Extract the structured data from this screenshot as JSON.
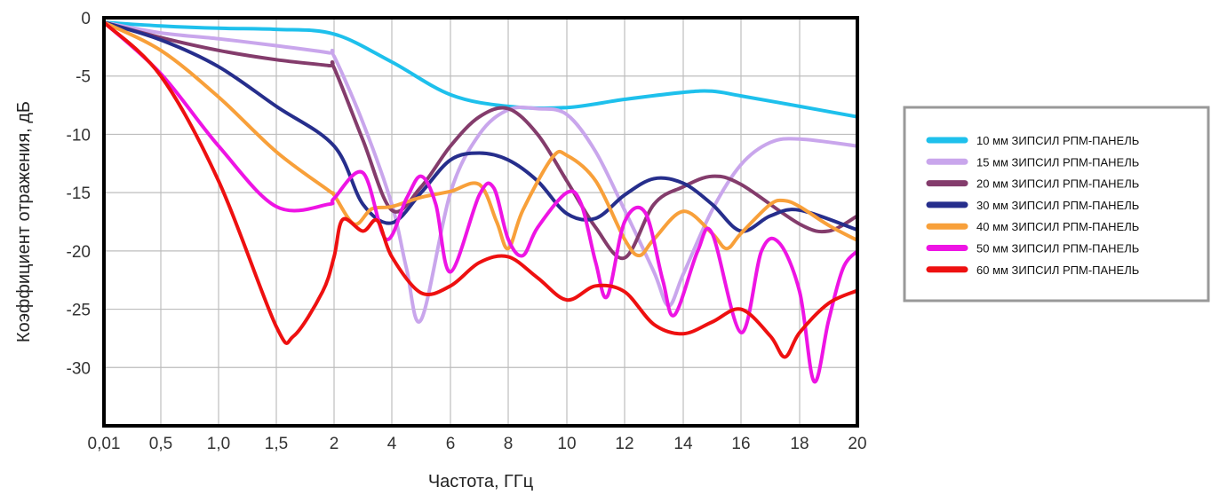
{
  "chart_data": {
    "type": "line",
    "title": "",
    "xlabel": "Частота, ГГц",
    "ylabel": "Коэффициент отражения, дБ",
    "x_ticks": [
      "0,01",
      "0,5",
      "1,0",
      "1,5",
      "2",
      "4",
      "6",
      "8",
      "10",
      "12",
      "14",
      "16",
      "18",
      "20"
    ],
    "y_ticks": [
      0,
      -5,
      -10,
      -15,
      -20,
      -25,
      -30
    ],
    "ylim": [
      -35,
      0
    ],
    "x_scale": "piecewise: 0,01–2 GHz stretched, 2–20 GHz compressed",
    "grid": true,
    "legend_position": "right",
    "series": [
      {
        "name": "10 мм ЗИПСИЛ РПМ-ПАНЕЛЬ",
        "color": "#1ec0ec",
        "points": [
          [
            0.01,
            -0.4
          ],
          [
            0.5,
            -0.7
          ],
          [
            1.0,
            -0.9
          ],
          [
            1.5,
            -1.0
          ],
          [
            2,
            -1.4
          ],
          [
            4,
            -3.8
          ],
          [
            6,
            -6.6
          ],
          [
            8,
            -7.6
          ],
          [
            10,
            -7.7
          ],
          [
            12,
            -7.0
          ],
          [
            14,
            -6.4
          ],
          [
            15,
            -6.3
          ],
          [
            16,
            -6.7
          ],
          [
            18,
            -7.6
          ],
          [
            20,
            -8.5
          ]
        ]
      },
      {
        "name": "15 мм ЗИПСИЛ РПМ-ПАНЕЛЬ",
        "color": "#c9a6ec",
        "points": [
          [
            0.01,
            -0.4
          ],
          [
            0.5,
            -1.3
          ],
          [
            1.0,
            -1.8
          ],
          [
            1.5,
            -2.4
          ],
          [
            1.95,
            -3.0
          ],
          [
            2,
            -3.3
          ],
          [
            3,
            -9.0
          ],
          [
            4,
            -16.0
          ],
          [
            4.5,
            -21.5
          ],
          [
            5,
            -25.9
          ],
          [
            6,
            -15.0
          ],
          [
            7,
            -10.0
          ],
          [
            8,
            -7.9
          ],
          [
            9,
            -7.8
          ],
          [
            10,
            -8.3
          ],
          [
            11,
            -11.5
          ],
          [
            12,
            -16.5
          ],
          [
            13,
            -21.8
          ],
          [
            13.5,
            -24.7
          ],
          [
            14,
            -22.0
          ],
          [
            15,
            -16.5
          ],
          [
            16,
            -12.6
          ],
          [
            17,
            -10.7
          ],
          [
            18,
            -10.4
          ],
          [
            20,
            -11.0
          ]
        ]
      },
      {
        "name": "20 мм ЗИПСИЛ РПМ-ПАНЕЛЬ",
        "color": "#843c6c",
        "points": [
          [
            0.01,
            -0.4
          ],
          [
            0.5,
            -1.7
          ],
          [
            1.0,
            -2.8
          ],
          [
            1.5,
            -3.6
          ],
          [
            1.95,
            -4.1
          ],
          [
            2,
            -4.3
          ],
          [
            3,
            -10.5
          ],
          [
            4,
            -16.5
          ],
          [
            5,
            -14.5
          ],
          [
            6,
            -11.0
          ],
          [
            7,
            -8.5
          ],
          [
            8,
            -7.8
          ],
          [
            9,
            -10.0
          ],
          [
            10,
            -14.0
          ],
          [
            11,
            -18.0
          ],
          [
            12,
            -20.6
          ],
          [
            13,
            -16.0
          ],
          [
            14,
            -14.5
          ],
          [
            15,
            -13.6
          ],
          [
            16,
            -14.3
          ],
          [
            18,
            -17.7
          ],
          [
            19,
            -18.3
          ],
          [
            20,
            -17.0
          ]
        ]
      },
      {
        "name": "30 мм ЗИПСИЛ РПМ-ПАНЕЛЬ",
        "color": "#262e8c",
        "points": [
          [
            0.01,
            -0.4
          ],
          [
            0.5,
            -1.9
          ],
          [
            1.0,
            -4.2
          ],
          [
            1.5,
            -7.6
          ],
          [
            2,
            -11.0
          ],
          [
            3,
            -16.0
          ],
          [
            4,
            -17.6
          ],
          [
            5,
            -15.0
          ],
          [
            6,
            -12.2
          ],
          [
            7,
            -11.6
          ],
          [
            8,
            -12.2
          ],
          [
            9,
            -14.0
          ],
          [
            10,
            -16.8
          ],
          [
            11,
            -17.2
          ],
          [
            12,
            -15.2
          ],
          [
            13,
            -13.8
          ],
          [
            14,
            -14.2
          ],
          [
            15,
            -16.0
          ],
          [
            16,
            -18.3
          ],
          [
            17,
            -17.0
          ],
          [
            18,
            -16.5
          ],
          [
            20,
            -18.2
          ]
        ]
      },
      {
        "name": "40 мм ЗИПСИЛ РПМ-ПАНЕЛЬ",
        "color": "#f8a03a",
        "points": [
          [
            0.01,
            -0.4
          ],
          [
            0.5,
            -2.8
          ],
          [
            1.0,
            -6.8
          ],
          [
            1.5,
            -11.5
          ],
          [
            1.95,
            -14.8
          ],
          [
            2,
            -15.2
          ],
          [
            2.7,
            -17.7
          ],
          [
            3.3,
            -16.4
          ],
          [
            4,
            -16.2
          ],
          [
            5,
            -15.4
          ],
          [
            6,
            -14.9
          ],
          [
            7,
            -14.3
          ],
          [
            7.6,
            -17.5
          ],
          [
            8,
            -19.8
          ],
          [
            8.5,
            -16.5
          ],
          [
            9.5,
            -12.0
          ],
          [
            10,
            -11.8
          ],
          [
            11,
            -14.0
          ],
          [
            12,
            -19.0
          ],
          [
            12.5,
            -20.4
          ],
          [
            13,
            -19.0
          ],
          [
            14,
            -16.6
          ],
          [
            15,
            -18.5
          ],
          [
            15.5,
            -19.8
          ],
          [
            16,
            -18.5
          ],
          [
            17,
            -16.0
          ],
          [
            17.5,
            -15.7
          ],
          [
            18,
            -16.2
          ],
          [
            19,
            -17.8
          ],
          [
            20,
            -19.1
          ]
        ]
      },
      {
        "name": "50 мм ЗИПСИЛ РПМ-ПАНЕЛЬ",
        "color": "#ee14e4",
        "points": [
          [
            0.01,
            -0.4
          ],
          [
            0.5,
            -4.8
          ],
          [
            1.0,
            -11.0
          ],
          [
            1.5,
            -16.2
          ],
          [
            1.95,
            -16.0
          ],
          [
            2,
            -15.5
          ],
          [
            3,
            -13.3
          ],
          [
            3.8,
            -19.0
          ],
          [
            4.5,
            -15.5
          ],
          [
            5,
            -13.6
          ],
          [
            5.5,
            -16.0
          ],
          [
            6,
            -21.8
          ],
          [
            7,
            -15.2
          ],
          [
            7.5,
            -14.6
          ],
          [
            8,
            -19.0
          ],
          [
            8.5,
            -20.4
          ],
          [
            9,
            -18.0
          ],
          [
            10,
            -15.0
          ],
          [
            10.5,
            -16.0
          ],
          [
            11,
            -21.0
          ],
          [
            11.4,
            -23.9
          ],
          [
            12,
            -17.5
          ],
          [
            12.7,
            -16.7
          ],
          [
            13.3,
            -22.5
          ],
          [
            13.7,
            -25.5
          ],
          [
            14.5,
            -20.0
          ],
          [
            15,
            -18.5
          ],
          [
            16,
            -27.0
          ],
          [
            16.7,
            -20.0
          ],
          [
            17.3,
            -19.3
          ],
          [
            18,
            -23.5
          ],
          [
            18.5,
            -31.2
          ],
          [
            19,
            -26.0
          ],
          [
            19.5,
            -21.5
          ],
          [
            20,
            -20.0
          ]
        ]
      },
      {
        "name": "60 мм ЗИПСИЛ РПМ-ПАНЕЛЬ",
        "color": "#ee1010",
        "points": [
          [
            0.01,
            -0.4
          ],
          [
            0.5,
            -5.0
          ],
          [
            1.0,
            -14.0
          ],
          [
            1.5,
            -26.5
          ],
          [
            1.65,
            -27.3
          ],
          [
            1.9,
            -23.5
          ],
          [
            2,
            -20.5
          ],
          [
            2.3,
            -17.3
          ],
          [
            3,
            -18.3
          ],
          [
            3.5,
            -17.4
          ],
          [
            4,
            -20.5
          ],
          [
            5,
            -23.6
          ],
          [
            6,
            -23.0
          ],
          [
            7,
            -21.0
          ],
          [
            8,
            -20.5
          ],
          [
            9,
            -22.3
          ],
          [
            10,
            -24.2
          ],
          [
            11,
            -23.0
          ],
          [
            12,
            -23.5
          ],
          [
            13,
            -26.3
          ],
          [
            14,
            -27.1
          ],
          [
            15,
            -26.1
          ],
          [
            16,
            -25.0
          ],
          [
            17,
            -27.3
          ],
          [
            17.5,
            -29.1
          ],
          [
            18,
            -27.0
          ],
          [
            19,
            -24.5
          ],
          [
            20,
            -23.4
          ]
        ]
      }
    ]
  }
}
